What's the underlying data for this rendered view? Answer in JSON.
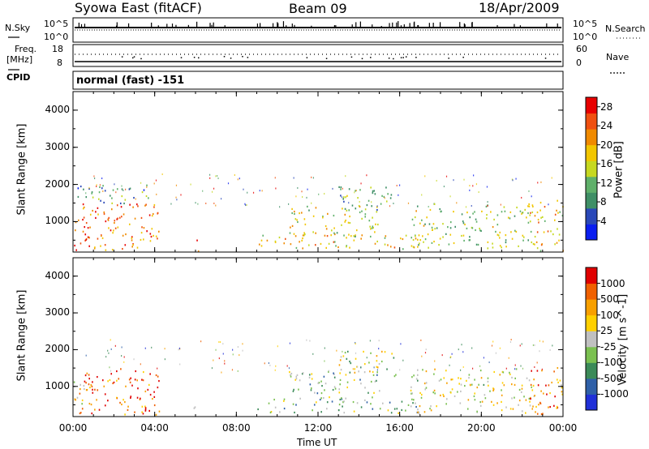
{
  "header": {
    "title": "Syowa East (fitACF)",
    "beam": "Beam 09",
    "date": "18/Apr/2009"
  },
  "noise_panel": {
    "left_label": "N.Sky",
    "right_label": "N.Search",
    "left_ticks": [
      "10^5",
      "10^0"
    ],
    "right_ticks": [
      "10^5",
      "10^0"
    ]
  },
  "freq_panel": {
    "left_label_1": "Freq.",
    "left_label_2": "[MHz]",
    "right_label": "Nave",
    "left_ticks": [
      "18",
      "8"
    ],
    "right_ticks": [
      "60",
      "0"
    ]
  },
  "cpid_panel": {
    "label": "CPID",
    "value": "normal (fast) -151"
  },
  "colors": {
    "power_scale": [
      "#0a1ef0",
      "#2a48b8",
      "#3f8f66",
      "#5fb06a",
      "#c6d820",
      "#f2c600",
      "#f08a00",
      "#f05010",
      "#e80000"
    ],
    "velocity_scale": [
      "#2030d8",
      "#2f60a8",
      "#3b8a58",
      "#7ac050",
      "#c0c0c0",
      "#ffd000",
      "#f8a000",
      "#f06000",
      "#e00000"
    ]
  },
  "chart_data": [
    {
      "type": "heatmap",
      "panel": "power",
      "ylabel": "Slant Range [km]",
      "xlabel": "",
      "ylim": [
        180,
        4500
      ],
      "y_ticks": [
        "1000",
        "2000",
        "3000",
        "4000"
      ],
      "x_ticks": [
        "00:00",
        "04:00",
        "08:00",
        "12:00",
        "16:00",
        "20:00",
        "00:00"
      ],
      "colorbar_label": "Power [dB]",
      "colorbar_ticks": [
        "4",
        "8",
        "12",
        "16",
        "20",
        "24",
        "28"
      ],
      "clim": [
        0,
        30
      ],
      "regions": [
        {
          "t0": 0.3,
          "t1": 4.2,
          "r0": 250,
          "r1": 1500,
          "level": 0.78
        },
        {
          "t0": 0.0,
          "t1": 0.8,
          "r0": 250,
          "r1": 1150,
          "level": 0.85
        },
        {
          "t0": 0.2,
          "t1": 4.0,
          "r0": 1500,
          "r1": 2000,
          "level": 0.3
        },
        {
          "t0": 5.9,
          "t1": 6.2,
          "r0": 220,
          "r1": 520,
          "level": 0.8
        },
        {
          "t0": 9.0,
          "t1": 17.0,
          "r0": 280,
          "r1": 680,
          "level": 0.6
        },
        {
          "t0": 10.5,
          "t1": 15.0,
          "r0": 620,
          "r1": 1450,
          "level": 0.55
        },
        {
          "t0": 13.0,
          "t1": 15.8,
          "r0": 1300,
          "r1": 2000,
          "level": 0.35
        },
        {
          "t0": 16.5,
          "t1": 22.5,
          "r0": 300,
          "r1": 1500,
          "level": 0.45
        },
        {
          "t0": 22.3,
          "t1": 24.0,
          "r0": 230,
          "r1": 1600,
          "level": 0.65
        }
      ]
    },
    {
      "type": "heatmap",
      "panel": "velocity",
      "ylabel": "Slant Range [km]",
      "xlabel": "Time UT",
      "ylim": [
        180,
        4500
      ],
      "y_ticks": [
        "1000",
        "2000",
        "3000",
        "4000"
      ],
      "x_ticks": [
        "00:00",
        "04:00",
        "08:00",
        "12:00",
        "16:00",
        "20:00",
        "00:00"
      ],
      "colorbar_label": "Velocity [m s^-1]",
      "colorbar_ticks": [
        "1000",
        "500",
        "100",
        "25",
        "-25",
        "-100",
        "-500",
        "-1000"
      ],
      "clim": [
        -1000,
        1000
      ],
      "regions": [
        {
          "t0": 0.3,
          "t1": 4.2,
          "r0": 250,
          "r1": 1500,
          "level": 0.85
        },
        {
          "t0": 0.0,
          "t1": 0.8,
          "r0": 250,
          "r1": 1150,
          "level": 0.6
        },
        {
          "t0": 5.9,
          "t1": 6.2,
          "r0": 220,
          "r1": 520,
          "level": 0.7
        },
        {
          "t0": 9.0,
          "t1": 17.0,
          "r0": 280,
          "r1": 680,
          "level": 0.35
        },
        {
          "t0": 10.5,
          "t1": 15.0,
          "r0": 620,
          "r1": 1450,
          "level": 0.38
        },
        {
          "t0": 13.0,
          "t1": 15.8,
          "r0": 1300,
          "r1": 2000,
          "level": 0.48
        },
        {
          "t0": 16.5,
          "t1": 22.5,
          "r0": 300,
          "r1": 1500,
          "level": 0.55
        },
        {
          "t0": 22.3,
          "t1": 24.0,
          "r0": 230,
          "r1": 1600,
          "level": 0.75
        }
      ]
    }
  ]
}
